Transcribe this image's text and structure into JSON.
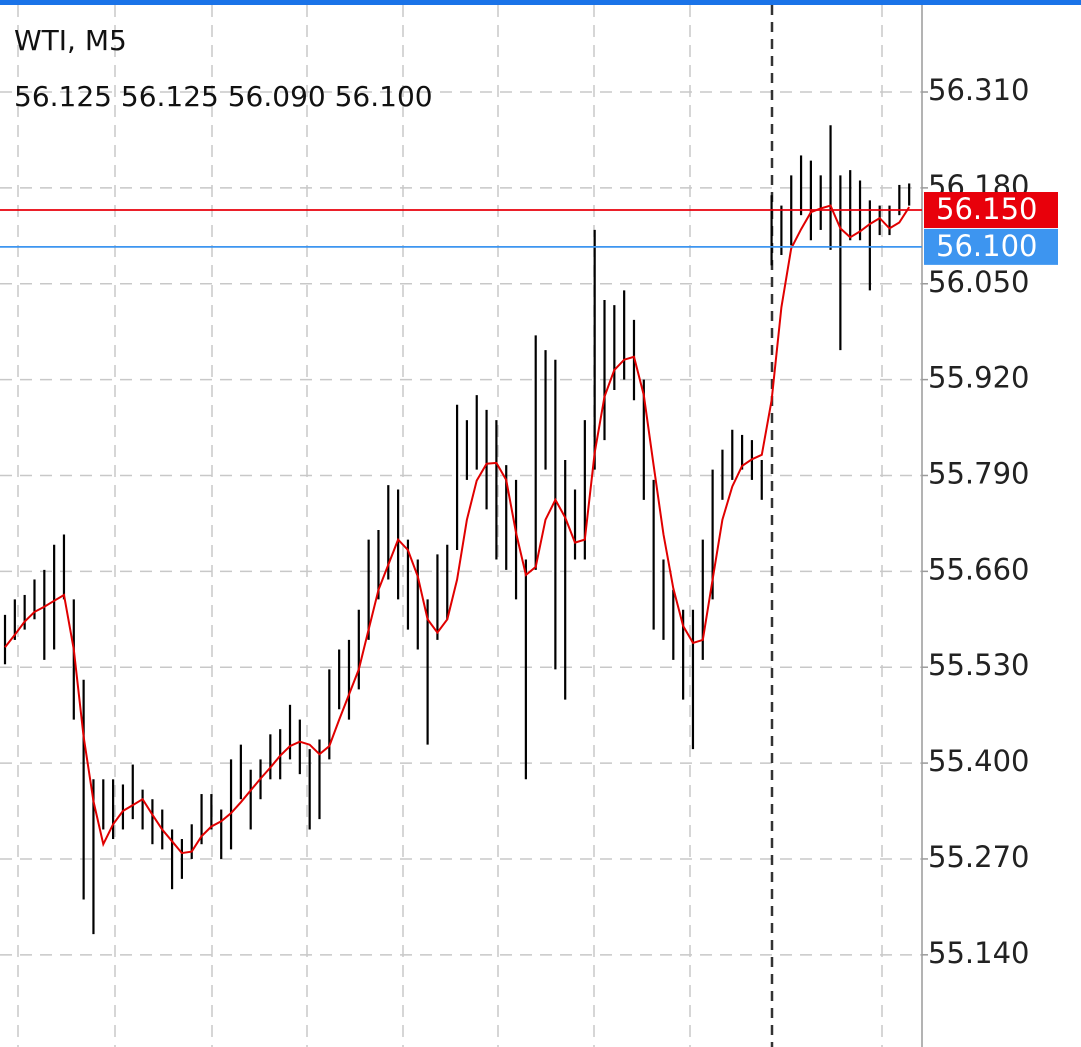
{
  "chart_data": {
    "type": "ohlc",
    "title": "WTI, M5",
    "subtitle": "56.125 56.125 56.090 56.100",
    "bar_color": "#000000",
    "high": [
      55.601,
      55.622,
      55.628,
      55.649,
      55.662,
      55.696,
      55.71,
      55.622,
      55.513,
      55.378,
      55.378,
      55.378,
      55.371,
      55.398,
      55.364,
      55.351,
      55.337,
      55.31,
      55.297,
      55.317,
      55.358,
      55.358,
      55.337,
      55.405,
      55.425,
      55.391,
      55.405,
      55.439,
      55.446,
      55.479,
      55.459,
      55.419,
      55.432,
      55.527,
      55.554,
      55.567,
      55.608,
      55.703,
      55.716,
      55.777,
      55.771,
      55.703,
      55.676,
      55.622,
      55.683,
      55.696,
      55.886,
      55.865,
      55.899,
      55.879,
      55.865,
      55.804,
      55.784,
      55.676,
      55.98,
      55.96,
      55.947,
      55.811,
      55.771,
      55.865,
      56.123,
      56.028,
      56.021,
      56.041,
      56.001,
      55.92,
      55.784,
      55.676,
      55.635,
      55.608,
      55.608,
      55.703,
      55.798,
      55.825,
      55.852,
      55.845,
      55.838,
      55.811,
      56.17,
      56.156,
      56.197,
      56.224,
      56.217,
      56.197,
      56.265,
      56.197,
      56.204,
      56.19,
      56.163,
      56.156,
      56.156,
      56.184,
      56.186
    ],
    "low": [
      55.534,
      55.567,
      55.581,
      55.595,
      55.54,
      55.554,
      55.622,
      55.459,
      55.215,
      55.168,
      55.31,
      55.297,
      55.31,
      55.324,
      55.31,
      55.29,
      55.283,
      55.229,
      55.243,
      55.27,
      55.29,
      55.31,
      55.27,
      55.283,
      55.351,
      55.31,
      55.351,
      55.378,
      55.378,
      55.405,
      55.385,
      55.31,
      55.324,
      55.405,
      55.473,
      55.459,
      55.5,
      55.567,
      55.622,
      55.649,
      55.622,
      55.581,
      55.554,
      55.425,
      55.567,
      55.595,
      55.689,
      55.784,
      55.798,
      55.744,
      55.676,
      55.662,
      55.622,
      55.378,
      55.662,
      55.798,
      55.527,
      55.486,
      55.676,
      55.676,
      55.798,
      55.838,
      55.906,
      55.92,
      55.892,
      55.757,
      55.581,
      55.567,
      55.54,
      55.486,
      55.419,
      55.54,
      55.622,
      55.757,
      55.784,
      55.798,
      55.784,
      55.757,
      56.075,
      56.089,
      56.102,
      56.143,
      56.109,
      56.123,
      56.096,
      55.96,
      56.109,
      56.109,
      56.041,
      56.116,
      56.116,
      56.143,
      56.156
    ],
    "series": [
      {
        "color": "#e00000",
        "values": [
          55.557,
          55.574,
          55.592,
          55.605,
          55.612,
          55.62,
          55.628,
          55.554,
          55.436,
          55.348,
          55.29,
          55.317,
          55.335,
          55.343,
          55.351,
          55.33,
          55.31,
          55.294,
          55.278,
          55.28,
          55.301,
          55.314,
          55.321,
          55.332,
          55.347,
          55.363,
          55.379,
          55.394,
          55.41,
          55.423,
          55.429,
          55.425,
          55.412,
          55.423,
          55.459,
          55.493,
          55.527,
          55.581,
          55.635,
          55.669,
          55.703,
          55.689,
          55.653,
          55.595,
          55.577,
          55.595,
          55.649,
          55.73,
          55.783,
          55.806,
          55.807,
          55.784,
          55.712,
          55.655,
          55.666,
          55.73,
          55.757,
          55.733,
          55.699,
          55.703,
          55.821,
          55.897,
          55.933,
          55.947,
          55.951,
          55.899,
          55.804,
          55.71,
          55.637,
          55.586,
          55.563,
          55.567,
          55.649,
          55.73,
          55.775,
          55.803,
          55.812,
          55.818,
          55.892,
          56.018,
          56.098,
          56.124,
          56.147,
          56.152,
          56.156,
          56.125,
          56.113,
          56.121,
          56.131,
          56.139,
          56.125,
          56.133,
          56.154
        ]
      }
    ],
    "price_lines": [
      {
        "value": 56.15,
        "label": "56.150",
        "color": "#e8000b"
      },
      {
        "value": 56.1,
        "label": "56.100",
        "color": "#3d95f0"
      }
    ],
    "ylim": [
      55.015,
      56.428
    ],
    "yticks": [
      {
        "value": 56.31,
        "label": "56.310"
      },
      {
        "value": 56.18,
        "label": "56.180"
      },
      {
        "value": 56.05,
        "label": "56.050"
      },
      {
        "value": 55.92,
        "label": "55.920"
      },
      {
        "value": 55.79,
        "label": "55.790"
      },
      {
        "value": 55.66,
        "label": "55.660"
      },
      {
        "value": 55.53,
        "label": "55.530"
      },
      {
        "value": 55.4,
        "label": "55.400"
      },
      {
        "value": 55.27,
        "label": "55.270"
      },
      {
        "value": 55.14,
        "label": "55.140"
      }
    ],
    "grid": true
  }
}
